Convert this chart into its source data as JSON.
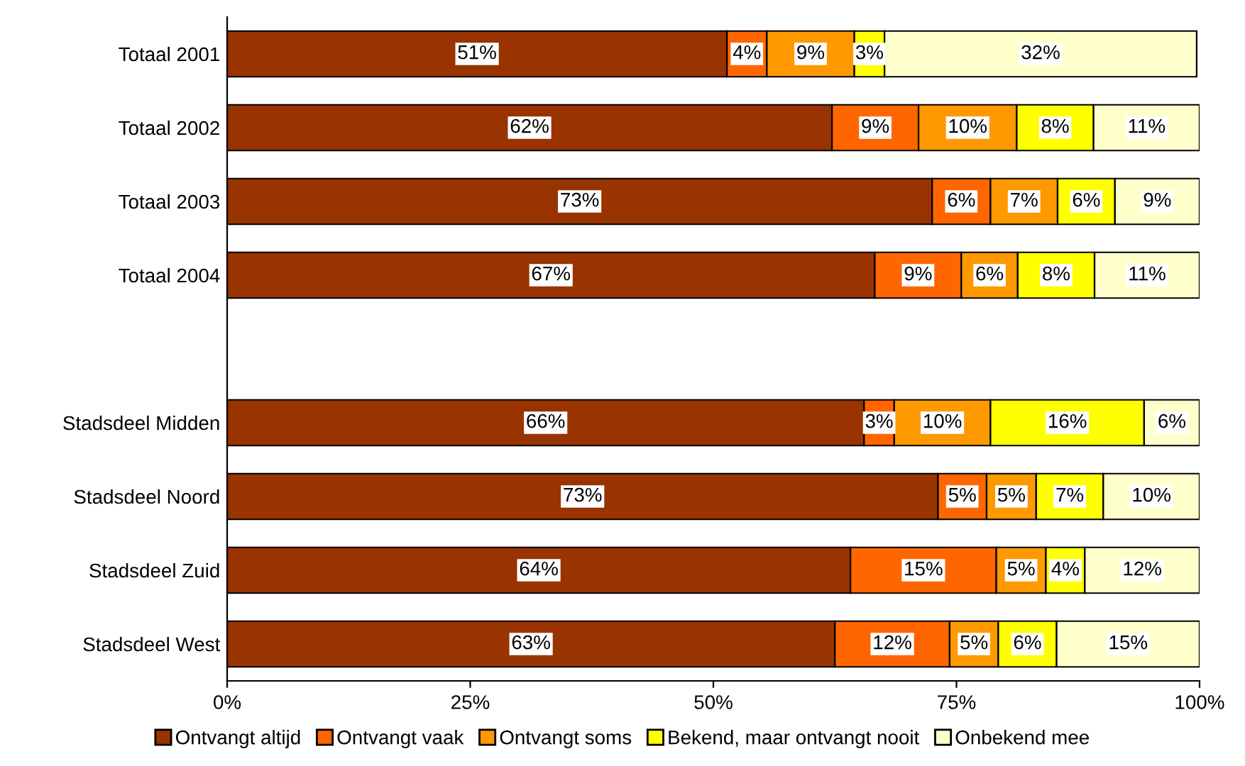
{
  "chart_data": {
    "type": "bar",
    "orientation": "horizontal",
    "stacked": true,
    "categories": [
      "Totaal 2001",
      "Totaal 2002",
      "Totaal 2003",
      "Totaal 2004",
      null,
      "Stadsdeel Midden",
      "Stadsdeel Noord",
      "Stadsdeel Zuid",
      "Stadsdeel West"
    ],
    "series": [
      {
        "name": "Ontvangt altijd",
        "color": "#993300",
        "values": [
          51.4,
          62.2,
          72.5,
          66.6,
          null,
          65.5,
          73.1,
          64.1,
          62.5
        ],
        "value_labels": [
          "51%",
          "62%",
          "73%",
          "67%",
          null,
          "66%",
          "73%",
          "64%",
          "63%"
        ]
      },
      {
        "name": "Ontvangt vaak",
        "color": "#ff6600",
        "values": [
          4.1,
          8.9,
          6.0,
          8.9,
          null,
          3.1,
          5.0,
          15.0,
          11.8
        ],
        "value_labels": [
          "4%",
          "9%",
          "6%",
          "9%",
          null,
          "3%",
          "5%",
          "15%",
          "12%"
        ]
      },
      {
        "name": "Ontvangt soms",
        "color": "#ff9900",
        "values": [
          9.0,
          10.1,
          6.9,
          5.8,
          null,
          9.9,
          5.1,
          5.1,
          5.0
        ],
        "value_labels": [
          "9%",
          "10%",
          "7%",
          "6%",
          null,
          "10%",
          "5%",
          "5%",
          "5%"
        ]
      },
      {
        "name": "Bekend, maar ontvangt nooit",
        "color": "#ffff00",
        "values": [
          3.1,
          7.9,
          5.9,
          7.9,
          null,
          15.8,
          6.9,
          4.0,
          6.0
        ],
        "value_labels": [
          "3%",
          "8%",
          "6%",
          "8%",
          null,
          "16%",
          "7%",
          "4%",
          "6%"
        ]
      },
      {
        "name": "Onbekend mee",
        "color": "#ffffcc",
        "values": [
          32.1,
          10.9,
          8.7,
          10.8,
          null,
          5.7,
          9.9,
          11.8,
          14.7
        ],
        "value_labels": [
          "32%",
          "11%",
          "9%",
          "11%",
          null,
          "6%",
          "10%",
          "12%",
          "15%"
        ]
      }
    ],
    "xlim": [
      0,
      100
    ],
    "xticks": [
      {
        "value": 0,
        "label": "0%"
      },
      {
        "value": 25,
        "label": "25%"
      },
      {
        "value": 50,
        "label": "50%"
      },
      {
        "value": 75,
        "label": "75%"
      },
      {
        "value": 100,
        "label": "100%"
      }
    ],
    "grid": false,
    "legend": "bottom"
  }
}
